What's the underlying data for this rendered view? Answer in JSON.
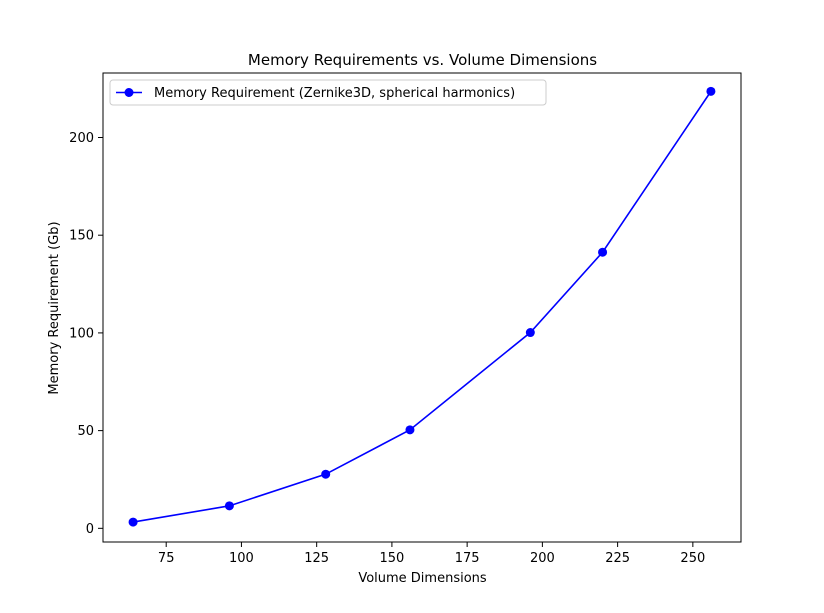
{
  "chart_data": {
    "type": "line",
    "title": "Memory Requirements vs. Volume Dimensions",
    "xlabel": "Volume Dimensions",
    "ylabel": "Memory Requirement (Gb)",
    "xlim": [
      54,
      266
    ],
    "ylim": [
      -7,
      233
    ],
    "xticks": [
      75,
      100,
      125,
      150,
      175,
      200,
      225,
      250
    ],
    "yticks": [
      0,
      50,
      100,
      150,
      200
    ],
    "legend_position": "top-left",
    "grid": false,
    "series": [
      {
        "name": "Memory Requirement (Zernike3D, spherical harmonics)",
        "color": "#0000ff",
        "marker": "circle",
        "x": [
          64,
          96,
          128,
          156,
          196,
          220,
          256
        ],
        "y": [
          3.2,
          11.5,
          27.7,
          50.4,
          100.2,
          141.3,
          223.6
        ]
      }
    ]
  }
}
